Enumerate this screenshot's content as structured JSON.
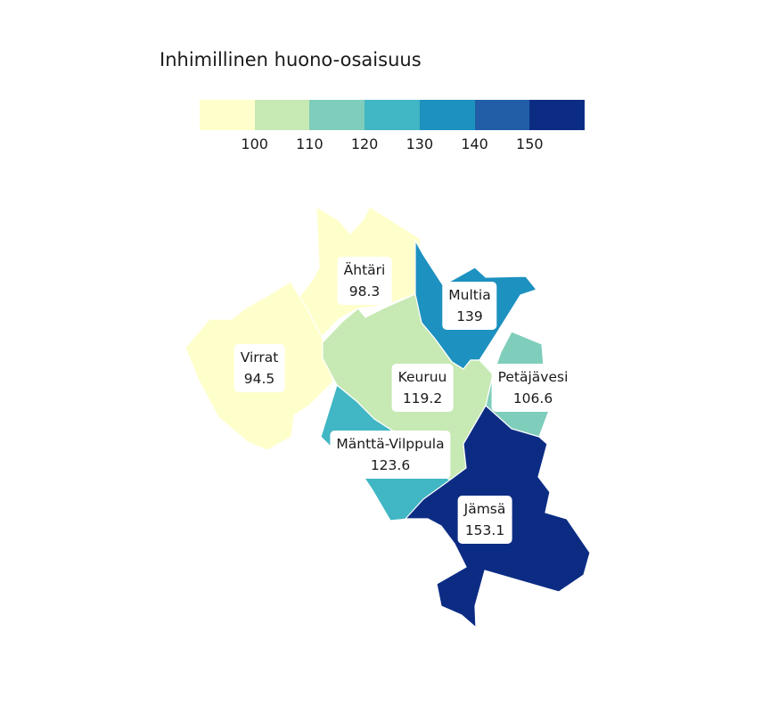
{
  "title": "Inhimillinen huono-osaisuus",
  "legend": {
    "colors": [
      "#ffffcc",
      "#c7e9b4",
      "#7fcdbb",
      "#41b6c4",
      "#1d91c0",
      "#225ea8",
      "#0c2c84"
    ],
    "ticks": [
      "100",
      "110",
      "120",
      "130",
      "140",
      "150"
    ]
  },
  "regions": [
    {
      "name": "Ähtäri",
      "value": "98.3",
      "color": "#ffffcc"
    },
    {
      "name": "Virrat",
      "value": "94.5",
      "color": "#ffffcc"
    },
    {
      "name": "Multia",
      "value": "139",
      "color": "#1d91c0"
    },
    {
      "name": "Keuruu",
      "value": "119.2",
      "color": "#7fcdbb"
    },
    {
      "name": "Petäjävesi",
      "value": "106.6",
      "color": "#c7e9b4"
    },
    {
      "name": "Mänttä-Vilppula",
      "value": "123.6",
      "color": "#41b6c4"
    },
    {
      "name": "Jämsä",
      "value": "153.1",
      "color": "#0c2c84"
    }
  ]
}
